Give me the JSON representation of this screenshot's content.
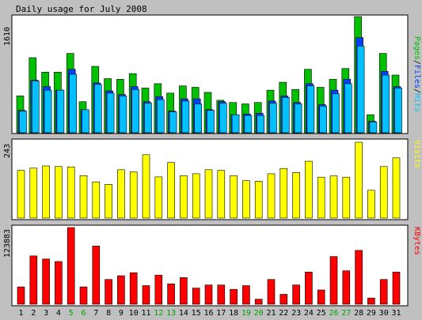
{
  "title": "Daily usage for July 2008",
  "colors": {
    "pages": "#00c000",
    "files": "#0040ff",
    "hits": "#00c0ff",
    "visits": "#ffff00",
    "kbytes": "#ff0000",
    "weekday_label": "#000000",
    "weekend_label": "#00a000",
    "panel_bg": "#ffffff",
    "frame_bg": "#c0c0c0"
  },
  "chart_data": [
    {
      "type": "bar",
      "panel": "hits-files-pages",
      "ymax_label": "1610",
      "ylim": [
        0,
        1610
      ],
      "legend": [
        {
          "name": "Pages",
          "color": "#00c000"
        },
        {
          "name": "Files",
          "color": "#0040ff"
        },
        {
          "name": "Hits",
          "color": "#00c0ff"
        }
      ],
      "legend_separator": "/",
      "categories": [
        "1",
        "2",
        "3",
        "4",
        "5",
        "6",
        "7",
        "8",
        "9",
        "10",
        "11",
        "12",
        "13",
        "14",
        "15",
        "16",
        "17",
        "18",
        "19",
        "20",
        "21",
        "22",
        "23",
        "24",
        "25",
        "26",
        "27",
        "28",
        "29",
        "30",
        "31"
      ],
      "series": [
        {
          "name": "Pages",
          "values": [
            510,
            1040,
            840,
            840,
            1100,
            430,
            920,
            750,
            740,
            820,
            620,
            680,
            550,
            650,
            630,
            560,
            450,
            420,
            400,
            420,
            590,
            700,
            600,
            880,
            630,
            740,
            890,
            1610,
            250,
            1100,
            800
          ]
        },
        {
          "name": "Files",
          "values": [
            310,
            730,
            640,
            590,
            880,
            320,
            690,
            580,
            530,
            640,
            430,
            500,
            300,
            470,
            470,
            320,
            430,
            250,
            260,
            270,
            440,
            510,
            420,
            680,
            390,
            590,
            740,
            1320,
            160,
            850,
            640
          ]
        },
        {
          "name": "Hits",
          "values": [
            300,
            720,
            590,
            590,
            810,
            320,
            670,
            550,
            510,
            600,
            410,
            460,
            290,
            440,
            400,
            310,
            410,
            250,
            240,
            240,
            410,
            490,
            400,
            650,
            370,
            540,
            680,
            1200,
            150,
            800,
            620
          ]
        }
      ]
    },
    {
      "type": "bar",
      "panel": "visits",
      "ymax_label": "243",
      "ylim": [
        0,
        243
      ],
      "legend": [
        {
          "name": "Visits",
          "color": "#ffff00"
        }
      ],
      "categories": [
        "1",
        "2",
        "3",
        "4",
        "5",
        "6",
        "7",
        "8",
        "9",
        "10",
        "11",
        "12",
        "13",
        "14",
        "15",
        "16",
        "17",
        "18",
        "19",
        "20",
        "21",
        "22",
        "23",
        "24",
        "25",
        "26",
        "27",
        "28",
        "29",
        "30",
        "31"
      ],
      "series": [
        {
          "name": "Visits",
          "values": [
            153,
            160,
            167,
            165,
            164,
            136,
            116,
            108,
            155,
            148,
            203,
            132,
            178,
            136,
            142,
            155,
            153,
            136,
            120,
            118,
            142,
            159,
            146,
            182,
            131,
            135,
            131,
            243,
            89,
            165,
            193
          ]
        }
      ]
    },
    {
      "type": "bar",
      "panel": "kbytes",
      "ymax_label": "123883",
      "ylim": [
        0,
        123883
      ],
      "legend": [
        {
          "name": "KBytes",
          "color": "#ff0000"
        }
      ],
      "categories": [
        "1",
        "2",
        "3",
        "4",
        "5",
        "6",
        "7",
        "8",
        "9",
        "10",
        "11",
        "12",
        "13",
        "14",
        "15",
        "16",
        "17",
        "18",
        "19",
        "20",
        "21",
        "22",
        "23",
        "24",
        "25",
        "26",
        "27",
        "28",
        "29",
        "30",
        "31"
      ],
      "series": [
        {
          "name": "KBytes",
          "values": [
            28000,
            78000,
            73000,
            69000,
            123883,
            28000,
            94000,
            40000,
            46000,
            51000,
            30000,
            47000,
            33000,
            43000,
            26000,
            31000,
            31000,
            24000,
            30000,
            8000,
            40000,
            16000,
            31000,
            52000,
            23000,
            77000,
            54000,
            87000,
            10000,
            40000,
            52000
          ]
        }
      ]
    }
  ],
  "x_labels": [
    {
      "label": "1",
      "weekend": false
    },
    {
      "label": "2",
      "weekend": false
    },
    {
      "label": "3",
      "weekend": false
    },
    {
      "label": "4",
      "weekend": false
    },
    {
      "label": "5",
      "weekend": true
    },
    {
      "label": "6",
      "weekend": true
    },
    {
      "label": "7",
      "weekend": false
    },
    {
      "label": "8",
      "weekend": false
    },
    {
      "label": "9",
      "weekend": false
    },
    {
      "label": "10",
      "weekend": false
    },
    {
      "label": "11",
      "weekend": false
    },
    {
      "label": "12",
      "weekend": true
    },
    {
      "label": "13",
      "weekend": true
    },
    {
      "label": "14",
      "weekend": false
    },
    {
      "label": "15",
      "weekend": false
    },
    {
      "label": "16",
      "weekend": false
    },
    {
      "label": "17",
      "weekend": false
    },
    {
      "label": "18",
      "weekend": false
    },
    {
      "label": "19",
      "weekend": true
    },
    {
      "label": "20",
      "weekend": true
    },
    {
      "label": "21",
      "weekend": false
    },
    {
      "label": "22",
      "weekend": false
    },
    {
      "label": "23",
      "weekend": false
    },
    {
      "label": "24",
      "weekend": false
    },
    {
      "label": "25",
      "weekend": false
    },
    {
      "label": "26",
      "weekend": true
    },
    {
      "label": "27",
      "weekend": true
    },
    {
      "label": "28",
      "weekend": false
    },
    {
      "label": "29",
      "weekend": false
    },
    {
      "label": "30",
      "weekend": false
    },
    {
      "label": "31",
      "weekend": false
    }
  ]
}
